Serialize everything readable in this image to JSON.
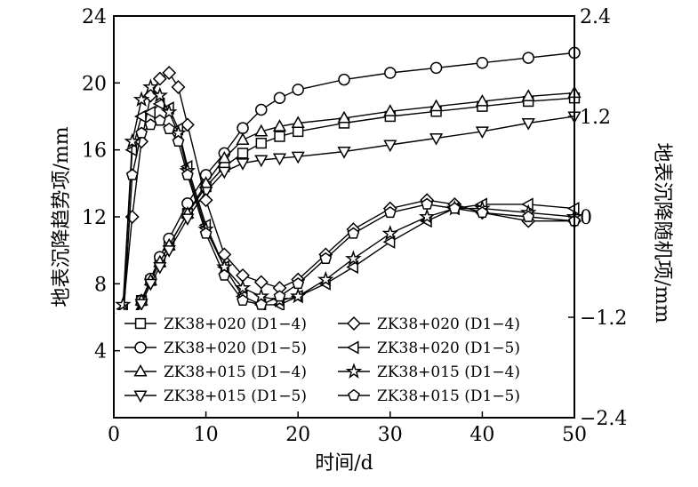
{
  "chart_data": {
    "type": "line",
    "title": "",
    "xlabel": "时间/d",
    "ylabel_left": "地表沉降趋势项/mm",
    "ylabel_right": "地表沉降随机项/mm",
    "xlim": [
      0,
      50
    ],
    "ylim_left": [
      0,
      24
    ],
    "ylim_right": [
      -2.4,
      2.4
    ],
    "x_ticks": [
      "0",
      "10",
      "20",
      "30",
      "40",
      "50"
    ],
    "y_left_ticks": [
      "4",
      "8",
      "12",
      "16",
      "20",
      "24"
    ],
    "y_right_ticks": [
      "−2.4",
      "−1.2",
      "0",
      "1.2",
      "2.4"
    ],
    "grid": false,
    "legend_position": "bottom-left",
    "legend_columns": [
      [
        "ZK38+020 (D1−4)",
        "ZK38+020 (D1−5)",
        "ZK38+015 (D1−4)",
        "ZK38+015 (D1−5)"
      ],
      [
        "ZK38+020 (D1−4)",
        "ZK38+020 (D1−5)",
        "ZK38+015 (D1−4)",
        "ZK38+015 (D1−5)"
      ]
    ],
    "series": [
      {
        "name": "ZK38+020 (D1−4)",
        "axis": "left",
        "marker": "square",
        "x": [
          1,
          2,
          3,
          4,
          5,
          6,
          8,
          10,
          12,
          14,
          16,
          18,
          20,
          25,
          30,
          35,
          40,
          45,
          50
        ],
        "y": [
          5.3,
          6.0,
          7.0,
          8.2,
          9.3,
          10.3,
          12.2,
          13.8,
          15.0,
          15.8,
          16.4,
          16.8,
          17.1,
          17.6,
          18.0,
          18.3,
          18.6,
          18.9,
          19.1
        ]
      },
      {
        "name": "ZK38+020 (D1−5)",
        "axis": "left",
        "marker": "circle",
        "x": [
          1,
          2,
          3,
          4,
          5,
          6,
          8,
          10,
          12,
          14,
          16,
          18,
          20,
          25,
          30,
          35,
          40,
          45,
          50
        ],
        "y": [
          4.4,
          5.5,
          7.0,
          8.3,
          9.6,
          10.7,
          12.8,
          14.5,
          15.8,
          17.3,
          18.4,
          19.1,
          19.6,
          20.2,
          20.6,
          20.9,
          21.2,
          21.5,
          21.8
        ]
      },
      {
        "name": "ZK38+015 (D1−4)",
        "axis": "left",
        "marker": "triangle-up",
        "x": [
          1,
          2,
          3,
          4,
          5,
          6,
          8,
          10,
          12,
          14,
          16,
          18,
          20,
          25,
          30,
          35,
          40,
          45,
          50
        ],
        "y": [
          4.8,
          5.8,
          7.0,
          8.2,
          9.3,
          10.3,
          12.2,
          14.0,
          15.5,
          16.6,
          17.1,
          17.4,
          17.6,
          17.9,
          18.3,
          18.6,
          18.9,
          19.2,
          19.4
        ]
      },
      {
        "name": "ZK38+015 (D1−5)",
        "axis": "left",
        "marker": "triangle-down",
        "x": [
          1,
          2,
          3,
          4,
          5,
          6,
          8,
          10,
          12,
          14,
          16,
          18,
          20,
          25,
          30,
          35,
          40,
          45,
          50
        ],
        "y": [
          4.7,
          5.6,
          6.8,
          8.0,
          9.0,
          10.0,
          11.9,
          13.5,
          14.7,
          15.2,
          15.4,
          15.5,
          15.6,
          15.9,
          16.3,
          16.7,
          17.1,
          17.6,
          18.0
        ]
      },
      {
        "name": "ZK38+020 (D1−4)",
        "axis": "right",
        "marker": "diamond",
        "x": [
          1,
          2,
          3,
          4,
          5,
          6,
          7,
          8,
          10,
          12,
          14,
          16,
          18,
          20,
          23,
          26,
          30,
          34,
          37,
          40,
          45,
          50
        ],
        "y": [
          -1.15,
          0.0,
          0.9,
          1.45,
          1.65,
          1.72,
          1.55,
          1.1,
          0.2,
          -0.45,
          -0.7,
          -0.78,
          -0.85,
          -0.75,
          -0.45,
          -0.15,
          0.1,
          0.2,
          0.15,
          0.05,
          -0.05,
          -0.05
        ]
      },
      {
        "name": "ZK38+020 (D1−5)",
        "axis": "right",
        "marker": "triangle-left",
        "x": [
          1,
          2,
          3,
          4,
          5,
          6,
          7,
          8,
          10,
          12,
          14,
          16,
          18,
          20,
          23,
          26,
          30,
          34,
          37,
          40,
          45,
          50
        ],
        "y": [
          -1.1,
          0.8,
          1.2,
          1.25,
          1.35,
          1.3,
          1.05,
          0.6,
          -0.1,
          -0.6,
          -0.95,
          -1.05,
          -1.05,
          -0.95,
          -0.8,
          -0.6,
          -0.3,
          -0.05,
          0.1,
          0.15,
          0.15,
          0.1
        ]
      },
      {
        "name": "ZK38+015 (D1−4)",
        "axis": "right",
        "marker": "star",
        "x": [
          1,
          2,
          3,
          4,
          5,
          6,
          7,
          8,
          10,
          12,
          14,
          16,
          18,
          20,
          23,
          26,
          30,
          34,
          37,
          40,
          45,
          50
        ],
        "y": [
          -1.05,
          0.9,
          1.4,
          1.55,
          1.45,
          1.25,
          1.0,
          0.55,
          -0.15,
          -0.6,
          -0.85,
          -0.95,
          -1.0,
          -0.95,
          -0.75,
          -0.5,
          -0.2,
          0.0,
          0.1,
          0.1,
          0.05,
          0.0
        ]
      },
      {
        "name": "ZK38+015 (D1−5)",
        "axis": "right",
        "marker": "pentagon",
        "x": [
          1,
          2,
          3,
          4,
          5,
          6,
          7,
          8,
          10,
          12,
          14,
          16,
          18,
          20,
          23,
          26,
          30,
          34,
          37,
          40,
          45,
          50
        ],
        "y": [
          -1.3,
          0.5,
          1.0,
          1.1,
          1.15,
          1.05,
          0.9,
          0.5,
          -0.2,
          -0.7,
          -1.0,
          -1.05,
          -0.95,
          -0.8,
          -0.5,
          -0.2,
          0.05,
          0.15,
          0.1,
          0.05,
          0.0,
          -0.05
        ]
      }
    ]
  }
}
